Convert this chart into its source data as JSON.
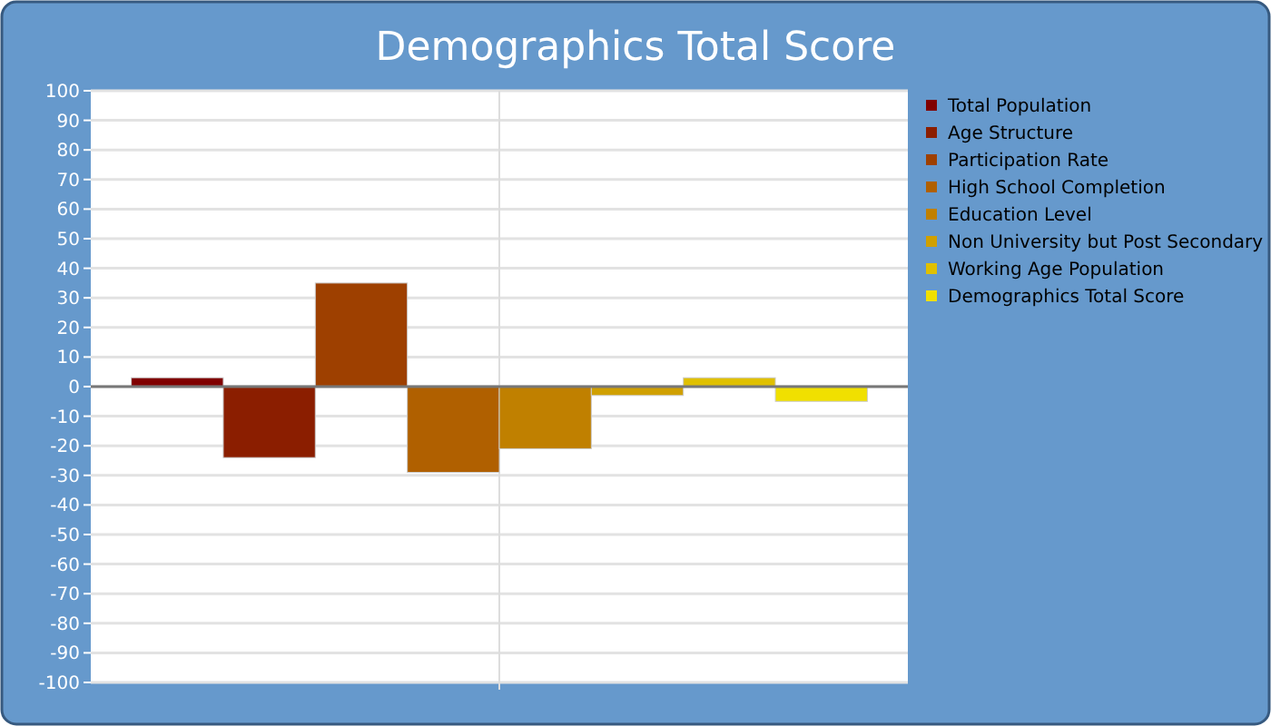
{
  "chart_data": {
    "type": "bar",
    "title": "Demographics Total Score",
    "categories": [
      null
    ],
    "series": [
      {
        "name": "Total Population",
        "color": "#800000",
        "values": [
          3
        ]
      },
      {
        "name": "Age Structure",
        "color": "#8b1e00",
        "values": [
          -24
        ]
      },
      {
        "name": "Participation Rate",
        "color": "#9e4000",
        "values": [
          35
        ]
      },
      {
        "name": "High School Completion",
        "color": "#b06000",
        "values": [
          -29
        ]
      },
      {
        "name": "Education Level",
        "color": "#c08000",
        "values": [
          -21
        ]
      },
      {
        "name": "Non University but Post Secondary",
        "color": "#d0a000",
        "values": [
          -3
        ]
      },
      {
        "name": "Working Age Population",
        "color": "#e0c000",
        "values": [
          3
        ]
      },
      {
        "name": "Demographics Total Score",
        "color": "#f0e000",
        "values": [
          -5
        ]
      }
    ],
    "ylim": [
      -100,
      100
    ],
    "yticks": [
      -100,
      -90,
      -80,
      -70,
      -60,
      -50,
      -40,
      -30,
      -20,
      -10,
      0,
      10,
      20,
      30,
      40,
      50,
      60,
      70,
      80,
      90,
      100
    ],
    "grid": true,
    "legend": "right"
  }
}
